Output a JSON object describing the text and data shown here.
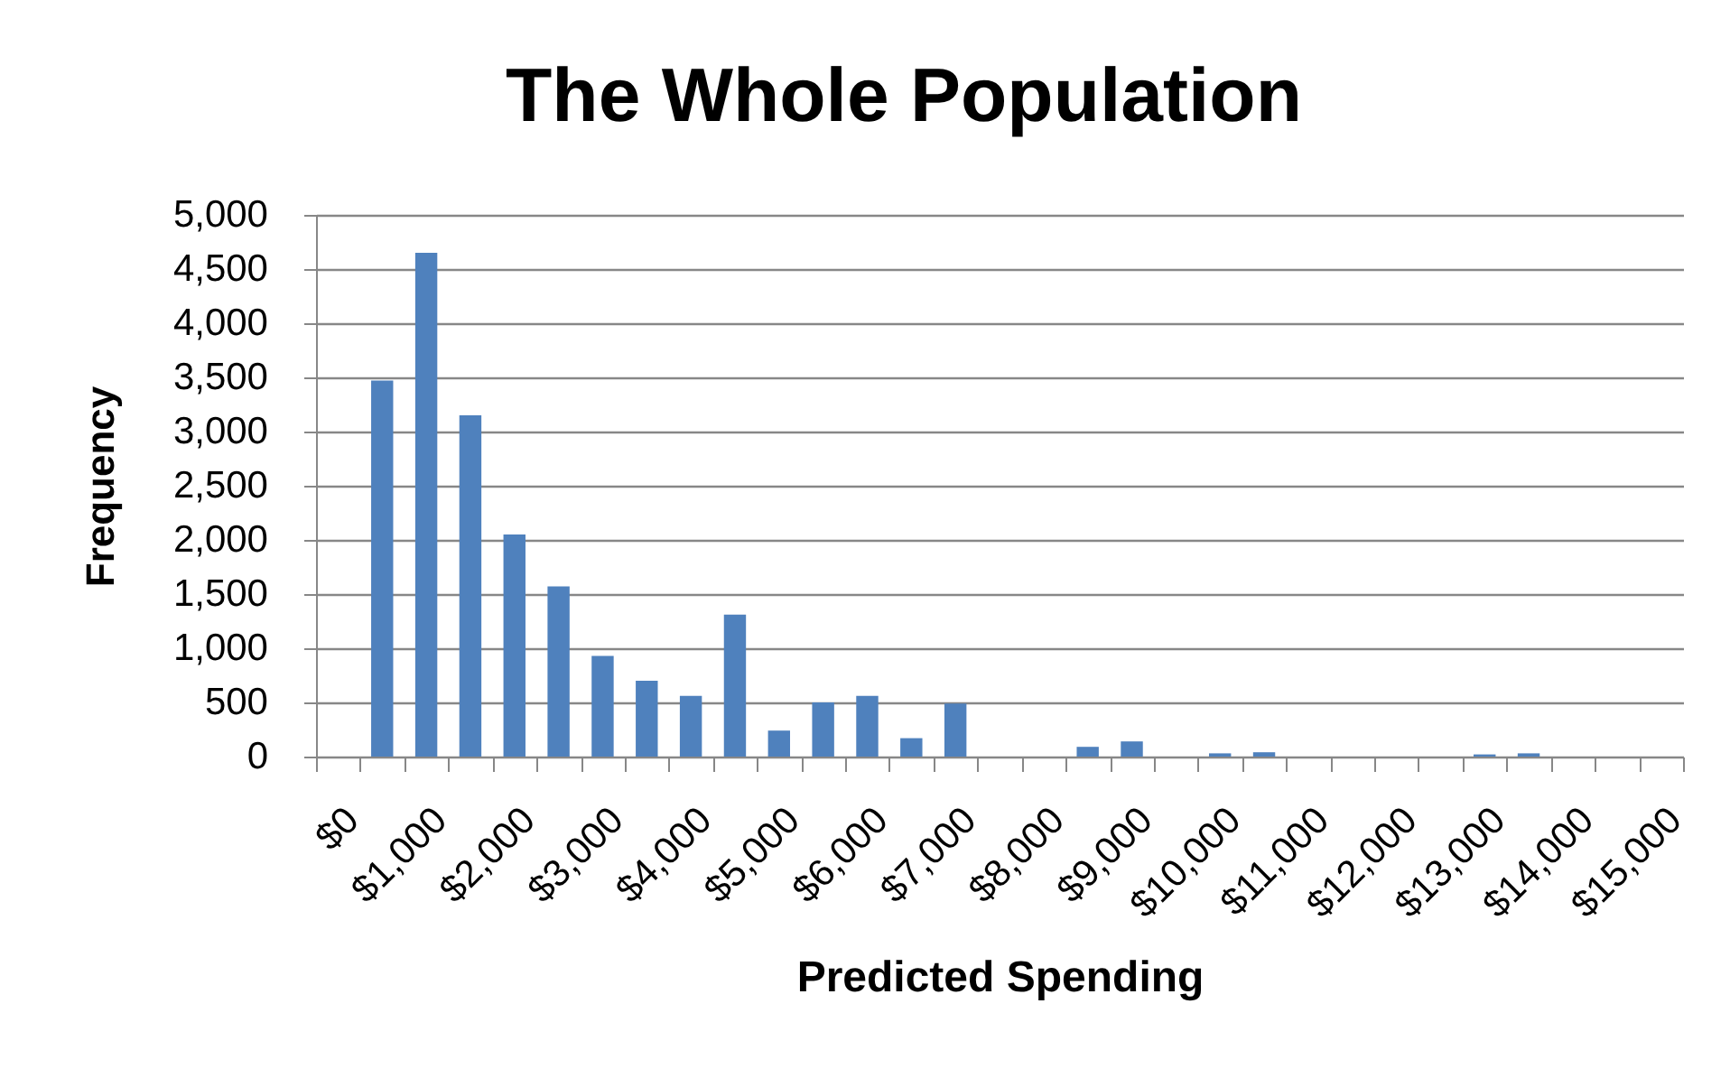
{
  "chart_data": {
    "type": "bar",
    "title": "The Whole Population",
    "xlabel": "Predicted Spending",
    "ylabel": "Frequency",
    "categories": [
      "$0",
      null,
      "$1,000",
      null,
      "$2,000",
      null,
      "$3,000",
      null,
      "$4,000",
      null,
      "$5,000",
      null,
      "$6,000",
      null,
      "$7,000",
      null,
      "$8,000",
      null,
      "$9,000",
      null,
      "$10,000",
      null,
      "$11,000",
      null,
      "$12,000",
      null,
      "$13,000",
      null,
      "$14,000",
      null,
      "$15,000"
    ],
    "values": [
      0,
      3470,
      4650,
      3150,
      2050,
      1570,
      930,
      700,
      560,
      1310,
      240,
      500,
      560,
      170,
      490,
      0,
      0,
      90,
      140,
      0,
      30,
      40,
      0,
      0,
      0,
      0,
      20,
      30,
      0,
      0,
      0
    ],
    "color": "#4f81bd",
    "ylim": [
      0,
      5000
    ],
    "yticks": [
      0,
      500,
      {
        "value": 1000,
        "label": "1,000"
      },
      {
        "value": 1500,
        "label": "1,500"
      },
      {
        "value": 2000,
        "label": "2,000"
      },
      {
        "value": 2500,
        "label": "2,500"
      },
      {
        "value": 3000,
        "label": "3,000"
      },
      {
        "value": 3500,
        "label": "3,500"
      },
      {
        "value": 4000,
        "label": "4,000"
      },
      {
        "value": 4500,
        "label": "4,500"
      },
      {
        "value": 5000,
        "label": "5,000"
      }
    ],
    "grid": "y"
  }
}
